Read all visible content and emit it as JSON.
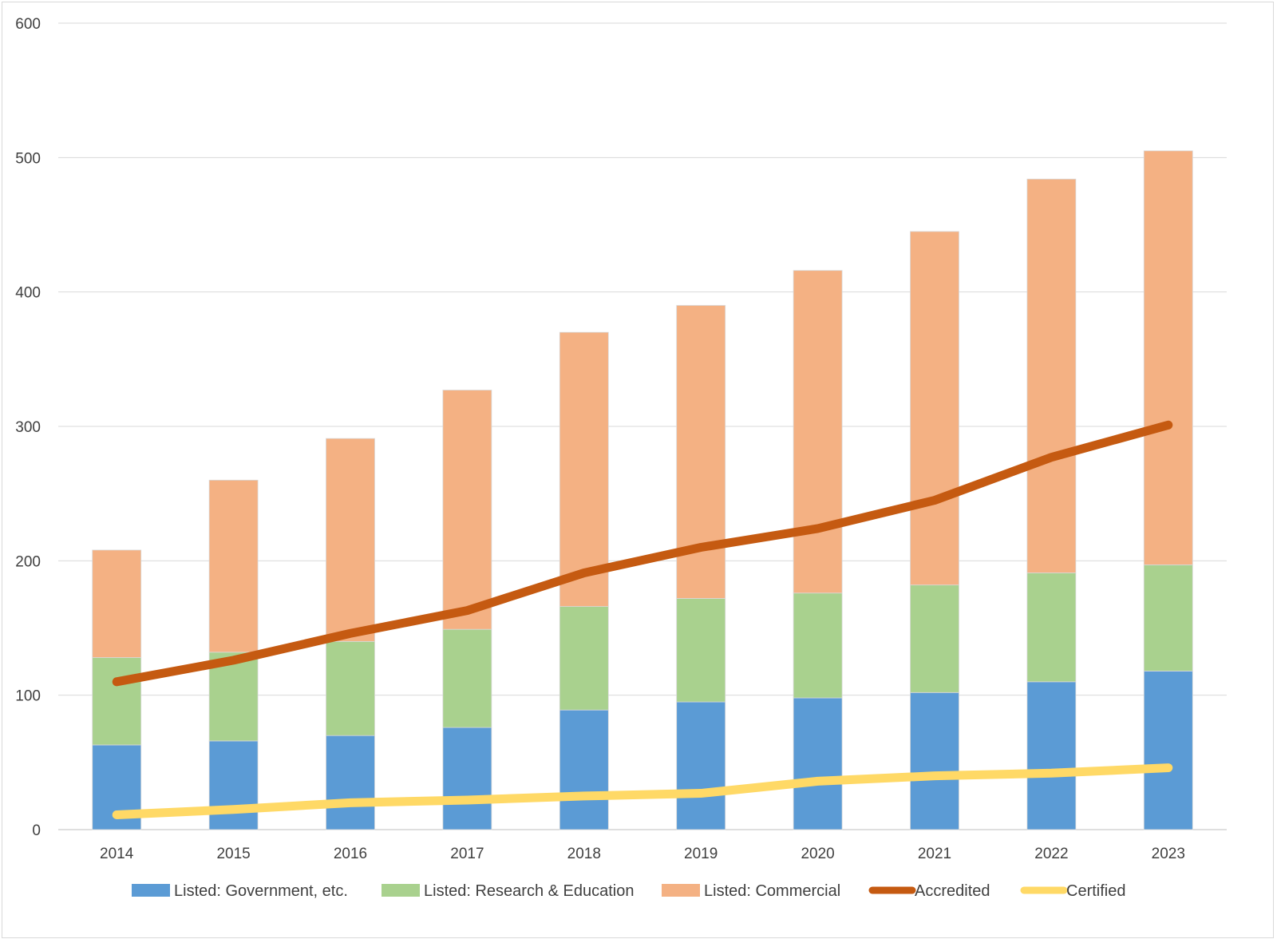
{
  "chart_data": {
    "type": "bar",
    "stacked": true,
    "title": "",
    "xlabel": "",
    "ylabel": "",
    "ylim": [
      0,
      600
    ],
    "yticks": [
      0,
      100,
      200,
      300,
      400,
      500,
      600
    ],
    "grid": true,
    "legend_position": "bottom",
    "categories": [
      "2014",
      "2015",
      "2016",
      "2017",
      "2018",
      "2019",
      "2020",
      "2021",
      "2022",
      "2023"
    ],
    "series": [
      {
        "name": "Listed: Government, etc.",
        "kind": "bar",
        "color": "#5b9bd5",
        "values": [
          63,
          66,
          70,
          76,
          89,
          95,
          98,
          102,
          110,
          118
        ]
      },
      {
        "name": "Listed: Research & Education",
        "kind": "bar",
        "color": "#a9d18e",
        "values": [
          65,
          66,
          70,
          73,
          77,
          77,
          78,
          80,
          81,
          79
        ]
      },
      {
        "name": "Listed: Commercial",
        "kind": "bar",
        "color": "#f4b183",
        "values": [
          80,
          128,
          151,
          178,
          204,
          218,
          240,
          263,
          293,
          308
        ]
      },
      {
        "name": "Accredited",
        "kind": "line",
        "color": "#c55a11",
        "values": [
          110,
          126,
          146,
          163,
          191,
          210,
          224,
          245,
          277,
          301
        ]
      },
      {
        "name": "Certified",
        "kind": "line",
        "color": "#ffd966",
        "values": [
          11,
          15,
          20,
          22,
          25,
          27,
          36,
          40,
          42,
          46
        ]
      }
    ]
  }
}
